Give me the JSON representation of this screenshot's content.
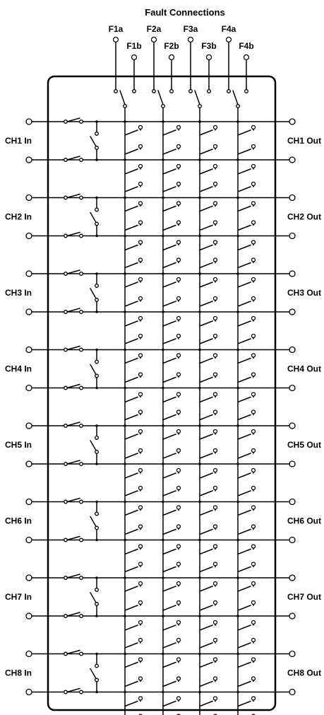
{
  "title": "Fault Connections",
  "fault_connections": [
    {
      "a": "F1a",
      "b": "F1b"
    },
    {
      "a": "F2a",
      "b": "F2b"
    },
    {
      "a": "F3a",
      "b": "F3b"
    },
    {
      "a": "F4a",
      "b": "F4b"
    }
  ],
  "channels": [
    {
      "in": "CH1 In",
      "out": "CH1 Out"
    },
    {
      "in": "CH2 In",
      "out": "CH2 Out"
    },
    {
      "in": "CH3 In",
      "out": "CH3 Out"
    },
    {
      "in": "CH4 In",
      "out": "CH4 Out"
    },
    {
      "in": "CH5 In",
      "out": "CH5 Out"
    },
    {
      "in": "CH6 In",
      "out": "CH6 Out"
    },
    {
      "in": "CH7 In",
      "out": "CH7 Out"
    },
    {
      "in": "CH8 In",
      "out": "CH8 Out"
    }
  ]
}
